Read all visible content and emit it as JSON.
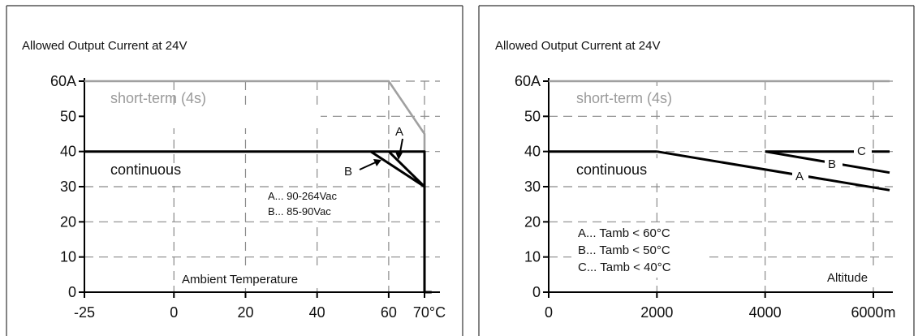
{
  "chart_data": [
    {
      "type": "line",
      "title": "Allowed Output Current at 24V",
      "xlabel": "Ambient Temperature",
      "xlim": [
        -25,
        70
      ],
      "ylim": [
        0,
        60
      ],
      "x_ticks": [
        "-25",
        "0",
        "20",
        "40",
        "60",
        "70°C"
      ],
      "y_ticks": [
        "60A",
        "50",
        "40",
        "30",
        "20",
        "10",
        "0"
      ],
      "grid": true,
      "series": [
        {
          "name": "short-term (4s)",
          "color": "#a0a0a0",
          "x": [
            -25,
            60,
            70,
            70
          ],
          "y": [
            60,
            60,
            45,
            30
          ]
        },
        {
          "name": "continuous",
          "color": "#000000",
          "x": [
            -25,
            70,
            70,
            72
          ],
          "y": [
            40,
            40,
            0,
            0
          ]
        },
        {
          "name": "A",
          "color": "#000000",
          "x": [
            60,
            60,
            70
          ],
          "y": [
            40,
            40,
            30
          ]
        },
        {
          "name": "B",
          "color": "#000000",
          "x": [
            55,
            70
          ],
          "y": [
            40,
            30
          ]
        }
      ],
      "notes": [
        "A... 90-264Vac",
        "B... 85-90Vac"
      ]
    },
    {
      "type": "line",
      "title": "Allowed Output Current at 24V",
      "xlabel": "Altitude",
      "xlim": [
        0,
        6300
      ],
      "ylim": [
        0,
        60
      ],
      "x_ticks": [
        "0",
        "2000",
        "4000",
        "6000m"
      ],
      "y_ticks": [
        "60A",
        "50",
        "40",
        "30",
        "20",
        "10",
        "0"
      ],
      "grid": true,
      "series": [
        {
          "name": "short-term (4s)",
          "color": "#a0a0a0",
          "x": [
            0,
            6300
          ],
          "y": [
            60,
            60
          ]
        },
        {
          "name": "continuous",
          "color": "#000000",
          "x": [
            0,
            2000
          ],
          "y": [
            40,
            40
          ]
        },
        {
          "name": "A",
          "color": "#000000",
          "x": [
            2000,
            6300
          ],
          "y": [
            40,
            29
          ]
        },
        {
          "name": "B",
          "color": "#000000",
          "x": [
            4000,
            6300
          ],
          "y": [
            40,
            34
          ]
        },
        {
          "name": "C",
          "color": "#000000",
          "x": [
            4000,
            6300
          ],
          "y": [
            40,
            40
          ]
        }
      ],
      "notes": [
        "A... Tamb < 60°C",
        "B... Tamb < 50°C",
        "C... Tamb < 40°C"
      ]
    }
  ]
}
